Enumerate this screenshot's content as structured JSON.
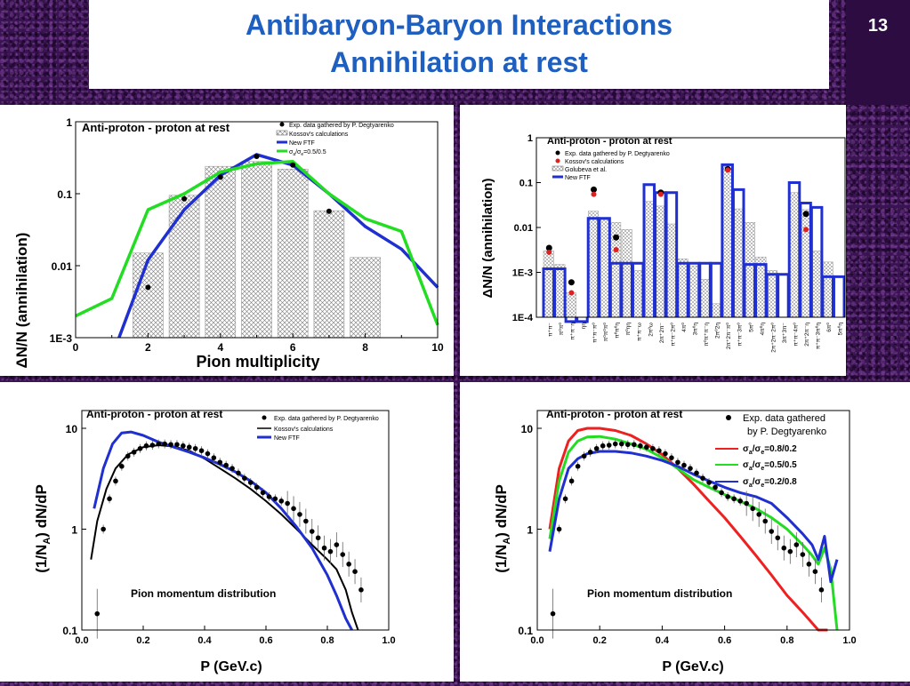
{
  "slide": {
    "title_line1": "Antibaryon-Baryon Interactions",
    "title_line2": "Annihilation at rest",
    "number": "13"
  },
  "chart_data": [
    {
      "type": "bar",
      "title": "Anti-proton - proton at rest",
      "xlabel": "Pion multiplicity",
      "ylabel": "ΔN/N   (annihilation)",
      "xlim": [
        0,
        10
      ],
      "ylim": [
        0.001,
        1
      ],
      "yscale": "log",
      "xticks": [
        "0",
        "2",
        "4",
        "6",
        "8",
        "10"
      ],
      "yticks": [
        "1E-3",
        "0.01",
        "0.1",
        "1"
      ],
      "bars": {
        "name": "Kossov's calculations",
        "x": [
          2,
          3,
          4,
          5,
          6,
          7,
          8
        ],
        "values": [
          0.015,
          0.095,
          0.24,
          0.28,
          0.22,
          0.058,
          0.013
        ]
      },
      "series": [
        {
          "name": "Exp. data gathered by P. Degtyarenko",
          "kind": "points",
          "x": [
            2,
            3,
            4,
            5,
            6,
            7
          ],
          "values": [
            0.005,
            0.085,
            0.17,
            0.33,
            0.25,
            0.057
          ]
        },
        {
          "name": "New FTF",
          "kind": "line",
          "color": "#1f2fd0",
          "x": [
            1.2,
            2,
            3,
            4,
            5,
            6,
            7,
            8,
            9,
            10
          ],
          "values": [
            0.001,
            0.012,
            0.06,
            0.18,
            0.35,
            0.25,
            0.1,
            0.035,
            0.017,
            0.005
          ]
        },
        {
          "name": "σa/σe=0.5/0.5",
          "kind": "line",
          "color": "#22dd22",
          "x": [
            0,
            1,
            2,
            3,
            4,
            5,
            6,
            7,
            8,
            9,
            10
          ],
          "values": [
            0.002,
            0.0035,
            0.06,
            0.1,
            0.2,
            0.26,
            0.28,
            0.1,
            0.045,
            0.03,
            0.0015
          ]
        }
      ],
      "legend": [
        "Exp. data gathered by P. Degtyarenko",
        "Kossov's calculations",
        "New FTF",
        "σa/σe=0.5/0.5"
      ]
    },
    {
      "type": "bar",
      "title": "Anti-proton - proton at rest",
      "ylabel": "ΔN/N   (annihilation)",
      "ylim": [
        0.0001,
        1
      ],
      "yscale": "log",
      "yticks": [
        "1E-4",
        "1E-3",
        "0.01",
        "0.1",
        "1"
      ],
      "categories": [
        "π⁺π⁻",
        "π⁰π⁰",
        "π⁺π⁻η",
        "ηη",
        "π⁺π⁻π⁰",
        "π⁰π⁰π⁰",
        "π⁰π⁰η",
        "π⁰ηη",
        "π⁺π⁻ω",
        "2π⁰ω",
        "2π⁺2π⁻",
        "π⁺π⁻2π⁰",
        "4π⁰",
        "3π⁰η",
        "π⁰π⁺π⁻η",
        "2π⁰2η",
        "2π⁺2π⁻π⁰",
        "π⁺π⁻3π⁰",
        "5π⁰",
        "4π⁰η",
        "2π⁺2π⁻2π⁰",
        "3π⁺3π⁻",
        "π⁺π⁻4π⁰",
        "2π⁺2π⁻η",
        "π⁺π⁻3π⁰η",
        "6π⁰",
        "5π⁰η"
      ],
      "series": [
        {
          "name": "Golubeva et al.",
          "kind": "bars",
          "values": [
            0.003,
            0.0015,
            0.00035,
            0.0001,
            0.023,
            0.015,
            0.013,
            0.009,
            0.0011,
            0.038,
            0.03,
            0.012,
            0.002,
            0.0014,
            0.0007,
            0.0002,
            0.25,
            0.026,
            0.013,
            0.0022,
            0.0011,
            0.0001,
            0.06,
            0.025,
            0.003,
            0.0017,
            0.0001
          ]
        },
        {
          "name": "New FTF",
          "kind": "steps",
          "color": "#1f2fd0",
          "values": [
            0.0012,
            0.0012,
            8e-05,
            8e-05,
            0.016,
            0.016,
            0.0016,
            0.0016,
            0.0016,
            0.09,
            0.06,
            0.06,
            0.0016,
            0.0016,
            0.0016,
            0.0016,
            0.25,
            0.07,
            0.0015,
            0.0015,
            0.0009,
            0.0009,
            0.1,
            0.035,
            0.028,
            0.0008,
            0.0008
          ]
        },
        {
          "name": "Exp. data gathered by P. Degtyarenko",
          "kind": "points",
          "values": [
            0.0035,
            null,
            0.0006,
            null,
            0.07,
            null,
            0.006,
            null,
            null,
            null,
            0.06,
            null,
            null,
            null,
            null,
            null,
            0.2,
            null,
            null,
            null,
            null,
            null,
            null,
            0.02,
            null,
            null,
            null
          ]
        },
        {
          "name": "Kossov's calculations",
          "kind": "points",
          "color": "#dd2020",
          "values": [
            0.0028,
            null,
            0.00035,
            null,
            0.055,
            null,
            0.0032,
            null,
            null,
            null,
            0.055,
            null,
            null,
            null,
            null,
            null,
            0.19,
            null,
            null,
            null,
            null,
            null,
            null,
            0.009,
            null,
            null,
            null
          ]
        }
      ],
      "legend": [
        "Exp. data gathered by P. Degtyarenko",
        "Kossov's calculations",
        "Golubeva et al.",
        "New FTF"
      ]
    },
    {
      "type": "line",
      "title": "Anti-proton - proton at rest",
      "annotation": "Pion momentum distribution",
      "xlabel": "P (GeV.c)",
      "ylabel": "(1/N_A) dN/dP",
      "xlim": [
        0,
        1
      ],
      "ylim": [
        0.1,
        15
      ],
      "yscale": "log",
      "xticks": [
        "0.0",
        "0.2",
        "0.4",
        "0.6",
        "0.8",
        "1.0"
      ],
      "yticks": [
        "0.1",
        "1",
        "10"
      ],
      "series": [
        {
          "name": "Exp. data gathered by P. Degtyarenko",
          "kind": "points",
          "x": [
            0.05,
            0.07,
            0.09,
            0.11,
            0.13,
            0.15,
            0.17,
            0.19,
            0.21,
            0.23,
            0.25,
            0.27,
            0.29,
            0.31,
            0.33,
            0.35,
            0.37,
            0.39,
            0.41,
            0.43,
            0.45,
            0.47,
            0.49,
            0.51,
            0.53,
            0.55,
            0.57,
            0.59,
            0.61,
            0.63,
            0.65,
            0.67,
            0.69,
            0.71,
            0.73,
            0.75,
            0.77,
            0.79,
            0.81,
            0.83,
            0.85,
            0.87,
            0.89,
            0.91
          ],
          "values": [
            0.145,
            1.0,
            2.0,
            3.0,
            4.2,
            5.3,
            5.8,
            6.3,
            6.7,
            6.8,
            7.0,
            7.0,
            6.9,
            6.9,
            6.7,
            6.5,
            6.3,
            6.0,
            5.6,
            5.1,
            4.6,
            4.3,
            4.0,
            3.6,
            3.2,
            2.9,
            2.6,
            2.3,
            2.1,
            2.0,
            1.9,
            1.8,
            1.6,
            1.4,
            1.2,
            0.95,
            0.82,
            0.65,
            0.6,
            0.7,
            0.56,
            0.45,
            0.38,
            0.25
          ]
        },
        {
          "name": "Kossov's calculations",
          "kind": "line",
          "color": "#000000",
          "x": [
            0.03,
            0.05,
            0.08,
            0.11,
            0.15,
            0.2,
            0.25,
            0.3,
            0.35,
            0.4,
            0.45,
            0.5,
            0.55,
            0.6,
            0.65,
            0.7,
            0.75,
            0.8,
            0.83,
            0.86,
            0.88,
            0.9
          ],
          "values": [
            0.5,
            1.2,
            2.5,
            4.0,
            5.5,
            6.5,
            6.8,
            6.6,
            6.0,
            5.0,
            4.0,
            3.2,
            2.5,
            1.9,
            1.4,
            1.0,
            0.7,
            0.5,
            0.4,
            0.25,
            0.15,
            0.1
          ]
        },
        {
          "name": "New FTF",
          "kind": "line",
          "color": "#1f2fd0",
          "x": [
            0.04,
            0.07,
            0.1,
            0.13,
            0.16,
            0.2,
            0.25,
            0.3,
            0.35,
            0.4,
            0.45,
            0.5,
            0.55,
            0.6,
            0.65,
            0.7,
            0.75,
            0.8,
            0.83,
            0.86,
            0.88
          ],
          "values": [
            1.6,
            4.0,
            7.0,
            9.0,
            9.2,
            8.5,
            7.3,
            6.5,
            5.8,
            5.1,
            4.4,
            3.7,
            3.0,
            2.3,
            1.6,
            1.05,
            0.65,
            0.35,
            0.22,
            0.13,
            0.09
          ]
        }
      ],
      "legend": [
        "Exp. data gathered by P. Degtyarenko",
        "Kossov's calculations",
        "New FTF"
      ]
    },
    {
      "type": "line",
      "title": "Anti-proton - proton at rest",
      "annotation": "Pion momentum distribution",
      "xlabel": "P (GeV.c)",
      "ylabel": "(1/N_A) dN/dP",
      "xlim": [
        0,
        1
      ],
      "ylim": [
        0.1,
        15
      ],
      "yscale": "log",
      "xticks": [
        "0.0",
        "0.2",
        "0.4",
        "0.6",
        "0.8",
        "1.0"
      ],
      "yticks": [
        "0.1",
        "1",
        "10"
      ],
      "series": [
        {
          "name": "Exp. data gathered by P. Degtyarenko",
          "kind": "points",
          "x": [
            0.05,
            0.07,
            0.09,
            0.11,
            0.13,
            0.15,
            0.17,
            0.19,
            0.21,
            0.23,
            0.25,
            0.27,
            0.29,
            0.31,
            0.33,
            0.35,
            0.37,
            0.39,
            0.41,
            0.43,
            0.45,
            0.47,
            0.49,
            0.51,
            0.53,
            0.55,
            0.57,
            0.59,
            0.61,
            0.63,
            0.65,
            0.67,
            0.69,
            0.71,
            0.73,
            0.75,
            0.77,
            0.79,
            0.81,
            0.83,
            0.85,
            0.87,
            0.89,
            0.91
          ],
          "values": [
            0.145,
            1.0,
            2.0,
            3.0,
            4.2,
            5.3,
            5.8,
            6.3,
            6.7,
            6.8,
            7.0,
            7.0,
            6.9,
            6.9,
            6.7,
            6.5,
            6.3,
            6.0,
            5.6,
            5.1,
            4.6,
            4.3,
            4.0,
            3.6,
            3.2,
            2.9,
            2.6,
            2.3,
            2.1,
            2.0,
            1.9,
            1.8,
            1.6,
            1.4,
            1.2,
            0.95,
            0.82,
            0.65,
            0.6,
            0.7,
            0.56,
            0.45,
            0.38,
            0.25
          ]
        },
        {
          "name": "σa/σe=0.8/0.2",
          "kind": "line",
          "color": "#ee2020",
          "x": [
            0.04,
            0.07,
            0.1,
            0.13,
            0.16,
            0.2,
            0.25,
            0.3,
            0.35,
            0.4,
            0.45,
            0.5,
            0.55,
            0.6,
            0.65,
            0.7,
            0.75,
            0.8,
            0.85,
            0.9,
            0.93
          ],
          "values": [
            1.0,
            4.0,
            7.5,
            9.5,
            10.0,
            10.0,
            9.5,
            8.5,
            7.0,
            5.5,
            4.0,
            2.8,
            1.9,
            1.3,
            0.85,
            0.55,
            0.35,
            0.22,
            0.15,
            0.1,
            0.1
          ]
        },
        {
          "name": "σa/σe=0.5/0.5",
          "kind": "line",
          "color": "#22dd22",
          "x": [
            0.04,
            0.07,
            0.1,
            0.13,
            0.16,
            0.2,
            0.25,
            0.3,
            0.35,
            0.4,
            0.45,
            0.5,
            0.55,
            0.6,
            0.65,
            0.7,
            0.75,
            0.8,
            0.85,
            0.88,
            0.9,
            0.92,
            0.94,
            0.96
          ],
          "values": [
            0.8,
            3.0,
            5.8,
            7.5,
            8.2,
            8.3,
            7.8,
            7.0,
            6.2,
            5.1,
            4.0,
            3.1,
            2.6,
            2.2,
            1.9,
            1.6,
            1.3,
            1.0,
            0.7,
            0.55,
            0.45,
            0.65,
            0.4,
            0.1
          ]
        },
        {
          "name": "σa/σe=0.2/0.8",
          "kind": "line",
          "color": "#1f2fd0",
          "x": [
            0.04,
            0.07,
            0.1,
            0.13,
            0.16,
            0.2,
            0.25,
            0.3,
            0.35,
            0.4,
            0.45,
            0.5,
            0.55,
            0.6,
            0.65,
            0.7,
            0.75,
            0.8,
            0.85,
            0.88,
            0.9,
            0.92,
            0.94,
            0.96
          ],
          "values": [
            0.6,
            2.0,
            4.0,
            5.0,
            5.6,
            5.9,
            5.9,
            5.7,
            5.3,
            4.8,
            4.2,
            3.5,
            3.0,
            2.6,
            2.3,
            2.1,
            1.8,
            1.3,
            0.9,
            0.7,
            0.5,
            0.85,
            0.3,
            0.5
          ]
        }
      ],
      "legend": [
        "Exp. data gathered by P. Degtyarenko",
        "σa/σe=0.8/0.2",
        "σa/σe=0.5/0.5",
        "σa/σe=0.2/0.8"
      ]
    }
  ],
  "labels": {
    "tl_title": "Anti-proton - proton at rest",
    "tl_xlabel": "Pion multiplicity",
    "tl_ylabel": "ΔN/N   (annihilation)",
    "tl_leg1": "Exp. data gathered by P. Degtyarenko",
    "tl_leg2": "Kossov's calculations",
    "tl_leg3": "New FTF",
    "tl_leg4": "σ",
    "tl_leg4b": "/σ",
    "tl_leg4c": "=0.5/0.5",
    "tr_title": "Anti-proton - proton at rest",
    "tr_ylabel": "ΔN/N   (annihilation)",
    "tr_leg1": "Exp. data gathered by P. Degtyarenko",
    "tr_leg2": "Kossov's calculations",
    "tr_leg3": "Golubeva et al.",
    "tr_leg4": "New FTF",
    "bl_title": "Anti-proton - proton at rest",
    "bl_annot": "Pion momentum distribution",
    "bl_xlabel": "P (GeV.c)",
    "bl_leg1": "Exp. data gathered by P. Degtyarenko",
    "bl_leg2": "Kossov's calculations",
    "bl_leg3": "New FTF",
    "br_title": "Anti-proton - proton at rest",
    "br_annot": "Pion momentum distribution",
    "br_xlabel": "P (GeV.c)",
    "br_leg1a": "Exp. data gathered",
    "br_leg1b": "by P. Degtyarenko",
    "br_leg2": "=0.8/0.2",
    "br_leg3": "=0.5/0.5",
    "br_leg4": "=0.2/0.8"
  }
}
